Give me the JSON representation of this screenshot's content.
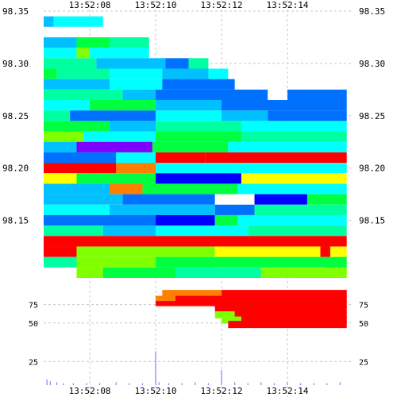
{
  "chart_data": [
    {
      "type": "heatmap",
      "title": "",
      "xlabel": "",
      "ylabel": "",
      "x_ticks": [
        "13:52:08",
        "13:52:10",
        "13:52:12",
        "13:52:14"
      ],
      "x_range": [
        "13:52:06.6",
        "13:52:16.0"
      ],
      "y_ticks": [
        "98.35",
        "98.30",
        "98.25",
        "98.20",
        "98.15"
      ],
      "ylim": [
        98.095,
        98.35
      ],
      "grid": true,
      "colors": {
        "red": "#ff0000",
        "orange": "#ff8000",
        "yellow": "#ffff00",
        "lime": "#80ff00",
        "green": "#00ff40",
        "teal": "#00ffa0",
        "cyan": "#00ffff",
        "sky": "#00c0ff",
        "azure": "#0070ff",
        "blue": "#0000ff",
        "violet": "#8000ff"
      },
      "bands": [
        {
          "price": 98.34,
          "segments": [
            [
              "13:52:06.6",
              "13:52:06.9",
              "sky"
            ],
            [
              "13:52:06.9",
              "13:52:08.4",
              "cyan"
            ]
          ]
        },
        {
          "price": 98.32,
          "segments": [
            [
              "13:52:06.6",
              "13:52:07.6",
              "sky"
            ],
            [
              "13:52:07.6",
              "13:52:08.6",
              "green"
            ],
            [
              "13:52:08.6",
              "13:52:09.8",
              "teal"
            ]
          ]
        },
        {
          "price": 98.31,
          "segments": [
            [
              "13:52:06.6",
              "13:52:07.6",
              "cyan"
            ],
            [
              "13:52:07.6",
              "13:52:08.0",
              "lime"
            ],
            [
              "13:52:08.0",
              "13:52:09.8",
              "cyan"
            ]
          ]
        },
        {
          "price": 98.3,
          "segments": [
            [
              "13:52:06.6",
              "13:52:08.2",
              "teal"
            ],
            [
              "13:52:08.2",
              "13:52:10.3",
              "sky"
            ],
            [
              "13:52:10.3",
              "13:52:11.0",
              "azure"
            ],
            [
              "13:52:11.0",
              "13:52:11.6",
              "teal"
            ]
          ]
        },
        {
          "price": 98.29,
          "segments": [
            [
              "13:52:06.6",
              "13:52:07.0",
              "green"
            ],
            [
              "13:52:07.0",
              "13:52:08.6",
              "teal"
            ],
            [
              "13:52:08.6",
              "13:52:10.2",
              "cyan"
            ],
            [
              "13:52:10.2",
              "13:52:11.6",
              "sky"
            ],
            [
              "13:52:11.6",
              "13:52:12.2",
              "cyan"
            ]
          ]
        },
        {
          "price": 98.28,
          "segments": [
            [
              "13:52:06.6",
              "13:52:08.6",
              "sky"
            ],
            [
              "13:52:08.6",
              "13:52:10.2",
              "cyan"
            ],
            [
              "13:52:10.2",
              "13:52:12.4",
              "azure"
            ]
          ]
        },
        {
          "price": 98.27,
          "segments": [
            [
              "13:52:06.6",
              "13:52:09.0",
              "teal"
            ],
            [
              "13:52:09.0",
              "13:52:10.0",
              "sky"
            ],
            [
              "13:52:10.0",
              "13:52:13.4",
              "azure"
            ],
            [
              "13:52:14.0",
              "13:52:15.8",
              "azure"
            ]
          ]
        },
        {
          "price": 98.26,
          "segments": [
            [
              "13:52:06.6",
              "13:52:08.0",
              "cyan"
            ],
            [
              "13:52:08.0",
              "13:52:10.0",
              "green"
            ],
            [
              "13:52:10.0",
              "13:52:12.0",
              "sky"
            ],
            [
              "13:52:12.0",
              "13:52:15.8",
              "azure"
            ]
          ]
        },
        {
          "price": 98.25,
          "segments": [
            [
              "13:52:06.6",
              "13:52:07.4",
              "teal"
            ],
            [
              "13:52:07.4",
              "13:52:10.0",
              "azure"
            ],
            [
              "13:52:10.0",
              "13:52:12.0",
              "cyan"
            ],
            [
              "13:52:12.0",
              "13:52:13.4",
              "sky"
            ],
            [
              "13:52:13.4",
              "13:52:15.8",
              "azure"
            ]
          ]
        },
        {
          "price": 98.24,
          "segments": [
            [
              "13:52:06.6",
              "13:52:08.6",
              "green"
            ],
            [
              "13:52:08.6",
              "13:52:10.0",
              "sky"
            ],
            [
              "13:52:10.0",
              "13:52:12.6",
              "teal"
            ],
            [
              "13:52:12.6",
              "13:52:15.8",
              "cyan"
            ]
          ]
        },
        {
          "price": 98.23,
          "segments": [
            [
              "13:52:06.6",
              "13:52:07.8",
              "lime"
            ],
            [
              "13:52:07.8",
              "13:52:10.0",
              "cyan"
            ],
            [
              "13:52:10.0",
              "13:52:12.6",
              "green"
            ],
            [
              "13:52:12.6",
              "13:52:15.8",
              "teal"
            ]
          ]
        },
        {
          "price": 98.22,
          "segments": [
            [
              "13:52:06.6",
              "13:52:07.6",
              "sky"
            ],
            [
              "13:52:07.6",
              "13:52:09.9",
              "violet"
            ],
            [
              "13:52:09.9",
              "13:52:12.2",
              "green"
            ],
            [
              "13:52:12.2",
              "13:52:15.8",
              "cyan"
            ]
          ]
        },
        {
          "price": 98.21,
          "segments": [
            [
              "13:52:06.6",
              "13:52:08.8",
              "azure"
            ],
            [
              "13:52:08.8",
              "13:52:10.0",
              "cyan"
            ],
            [
              "13:52:10.0",
              "13:52:11.5",
              "red"
            ],
            [
              "13:52:11.5",
              "13:52:15.8",
              "red"
            ]
          ]
        },
        {
          "price": 98.2,
          "segments": [
            [
              "13:52:06.6",
              "13:52:08.8",
              "red"
            ],
            [
              "13:52:08.8",
              "13:52:10.0",
              "orange"
            ],
            [
              "13:52:10.0",
              "13:52:12.5",
              "cyan"
            ],
            [
              "13:52:12.5",
              "13:52:15.8",
              "cyan"
            ]
          ]
        },
        {
          "price": 98.19,
          "segments": [
            [
              "13:52:06.6",
              "13:52:07.6",
              "yellow"
            ],
            [
              "13:52:07.6",
              "13:52:10.0",
              "green"
            ],
            [
              "13:52:10.0",
              "13:52:12.6",
              "blue"
            ],
            [
              "13:52:12.6",
              "13:52:15.8",
              "yellow"
            ]
          ]
        },
        {
          "price": 98.18,
          "segments": [
            [
              "13:52:06.6",
              "13:52:08.6",
              "sky"
            ],
            [
              "13:52:08.6",
              "13:52:09.6",
              "orange"
            ],
            [
              "13:52:09.6",
              "13:52:12.5",
              "green"
            ],
            [
              "13:52:12.5",
              "13:52:15.8",
              "cyan"
            ]
          ]
        },
        {
          "price": 98.17,
          "segments": [
            [
              "13:52:06.6",
              "13:52:09.0",
              "sky"
            ],
            [
              "13:52:09.0",
              "13:52:11.8",
              "azure"
            ],
            [
              "13:52:11.8",
              "13:52:13.0",
              "white"
            ],
            [
              "13:52:13.0",
              "13:52:14.6",
              "blue"
            ],
            [
              "13:52:14.6",
              "13:52:15.8",
              "green"
            ]
          ]
        },
        {
          "price": 98.16,
          "segments": [
            [
              "13:52:06.6",
              "13:52:08.6",
              "cyan"
            ],
            [
              "13:52:08.6",
              "13:52:11.8",
              "sky"
            ],
            [
              "13:52:11.8",
              "13:52:13.0",
              "azure"
            ],
            [
              "13:52:13.0",
              "13:52:15.8",
              "teal"
            ]
          ]
        },
        {
          "price": 98.15,
          "segments": [
            [
              "13:52:06.6",
              "13:52:10.0",
              "azure"
            ],
            [
              "13:52:10.0",
              "13:52:11.8",
              "blue"
            ],
            [
              "13:52:11.8",
              "13:52:12.5",
              "green"
            ],
            [
              "13:52:12.5",
              "13:52:15.8",
              "cyan"
            ]
          ]
        },
        {
          "price": 98.14,
          "segments": [
            [
              "13:52:06.6",
              "13:52:08.4",
              "teal"
            ],
            [
              "13:52:08.4",
              "13:52:10.0",
              "sky"
            ],
            [
              "13:52:10.0",
              "13:52:12.8",
              "cyan"
            ],
            [
              "13:52:12.8",
              "13:52:15.8",
              "teal"
            ]
          ]
        },
        {
          "price": 98.13,
          "segments": [
            [
              "13:52:06.6",
              "13:52:15.8",
              "red"
            ]
          ]
        },
        {
          "price": 98.12,
          "segments": [
            [
              "13:52:06.6",
              "13:52:07.6",
              "red"
            ],
            [
              "13:52:07.6",
              "13:52:11.8",
              "lime"
            ],
            [
              "13:52:11.8",
              "13:52:15.0",
              "yellow"
            ],
            [
              "13:52:15.0",
              "13:52:15.3",
              "red"
            ],
            [
              "13:52:15.3",
              "13:52:15.8",
              "yellow"
            ]
          ]
        },
        {
          "price": 98.11,
          "segments": [
            [
              "13:52:06.6",
              "13:52:07.6",
              "teal"
            ],
            [
              "13:52:07.6",
              "13:52:10.0",
              "lime"
            ],
            [
              "13:52:10.0",
              "13:52:15.8",
              "green"
            ]
          ]
        },
        {
          "price": 98.1,
          "segments": [
            [
              "13:52:07.6",
              "13:52:08.4",
              "lime"
            ],
            [
              "13:52:08.4",
              "13:52:10.6",
              "green"
            ],
            [
              "13:52:10.6",
              "13:52:13.2",
              "teal"
            ],
            [
              "13:52:13.2",
              "13:52:15.8",
              "lime"
            ]
          ]
        }
      ]
    },
    {
      "type": "heatmap",
      "title": "",
      "xlabel": "",
      "ylabel": "",
      "y_ticks": [
        "75",
        "50"
      ],
      "ylim": [
        25,
        95
      ],
      "rows": [
        {
          "level": 90,
          "segments": [
            [
              "13:52:10.2",
              "13:52:12.0",
              "orange"
            ],
            [
              "13:52:12.0",
              "13:52:15.8",
              "red"
            ]
          ]
        },
        {
          "level": 82,
          "segments": [
            [
              "13:52:10.0",
              "13:52:10.6",
              "orange"
            ],
            [
              "13:52:10.6",
              "13:52:15.8",
              "red"
            ]
          ]
        },
        {
          "level": 75,
          "segments": [
            [
              "13:52:10.0",
              "13:52:15.8",
              "red"
            ]
          ]
        },
        {
          "level": 68,
          "segments": [
            [
              "13:52:10.0",
              "13:52:11.8",
              "white"
            ],
            [
              "13:52:11.8",
              "13:52:15.8",
              "red"
            ]
          ]
        },
        {
          "level": 61,
          "segments": [
            [
              "13:52:11.8",
              "13:52:12.4",
              "lime"
            ],
            [
              "13:52:12.4",
              "13:52:15.8",
              "red"
            ]
          ]
        },
        {
          "level": 54,
          "segments": [
            [
              "13:52:12.0",
              "13:52:12.6",
              "lime"
            ],
            [
              "13:52:12.6",
              "13:52:15.8",
              "red"
            ]
          ]
        },
        {
          "level": 48,
          "segments": [
            [
              "13:52:12.2",
              "13:52:15.8",
              "red"
            ]
          ]
        }
      ]
    },
    {
      "type": "bar",
      "title": "",
      "xlabel": "",
      "ylabel": "",
      "y_ticks": [
        "25"
      ],
      "ylim": [
        0,
        38
      ],
      "color": "#8080ff",
      "x": [
        "13:52:06.7",
        "13:52:06.8",
        "13:52:07.0",
        "13:52:07.2",
        "13:52:07.5",
        "13:52:07.9",
        "13:52:08.3",
        "13:52:08.8",
        "13:52:09.2",
        "13:52:09.6",
        "13:52:10.0",
        "13:52:10.1",
        "13:52:10.4",
        "13:52:10.8",
        "13:52:11.2",
        "13:52:11.6",
        "13:52:12.0",
        "13:52:12.4",
        "13:52:12.8",
        "13:52:13.2",
        "13:52:13.6",
        "13:52:14.0",
        "13:52:14.4",
        "13:52:14.8",
        "13:52:15.2",
        "13:52:15.6"
      ],
      "values": [
        6,
        4,
        3,
        2,
        2,
        2,
        2,
        3,
        2,
        2,
        36,
        3,
        2,
        2,
        3,
        2,
        16,
        3,
        2,
        3,
        2,
        3,
        2,
        2,
        2,
        3
      ]
    }
  ]
}
